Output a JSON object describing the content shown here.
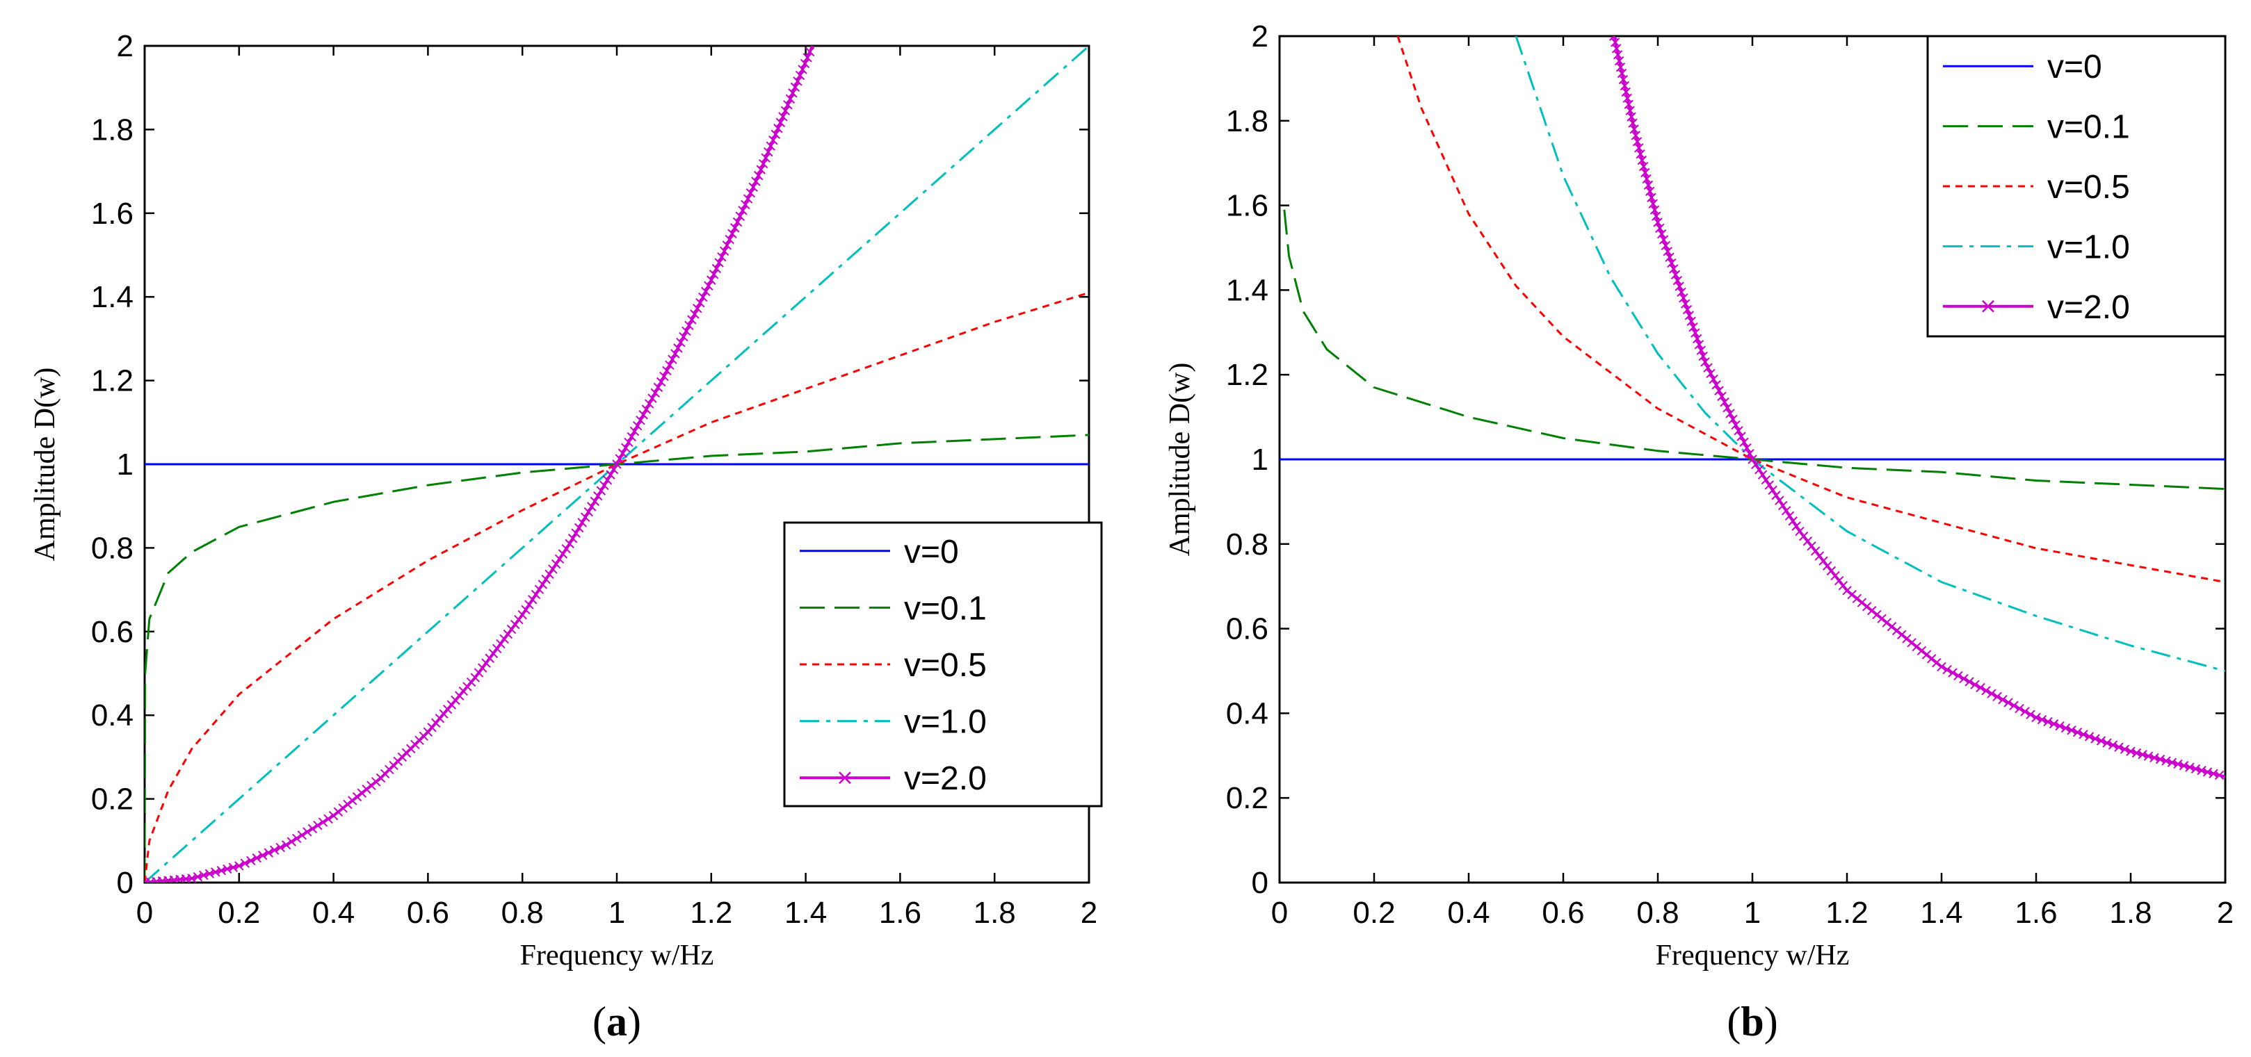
{
  "chart_data": [
    {
      "type": "line",
      "panel_label": "a",
      "xlabel": "Frequency w/Hz",
      "ylabel": "Amplitude D(w)",
      "xlim": [
        0,
        2
      ],
      "ylim": [
        0,
        2
      ],
      "xticks": [
        "0",
        "0.2",
        "0.4",
        "0.6",
        "0.8",
        "1",
        "1.2",
        "1.4",
        "1.6",
        "1.8",
        "2"
      ],
      "yticks": [
        "0",
        "0.2",
        "0.4",
        "0.6",
        "0.8",
        "1",
        "1.2",
        "1.4",
        "1.6",
        "1.8",
        "2"
      ],
      "grid": false,
      "legend_position": "lower-right",
      "series": [
        {
          "name": "v=0",
          "color": "#0000ff",
          "style": "solid",
          "x": [
            0,
            0.2,
            0.4,
            0.6,
            0.8,
            1.0,
            1.2,
            1.4,
            1.6,
            1.8,
            2.0
          ],
          "y": [
            1,
            1,
            1,
            1,
            1,
            1,
            1,
            1,
            1,
            1,
            1
          ]
        },
        {
          "name": "v=0.1",
          "color": "#008000",
          "style": "dashed",
          "x": [
            0,
            0.001,
            0.01,
            0.05,
            0.1,
            0.2,
            0.4,
            0.6,
            0.8,
            1.0,
            1.2,
            1.4,
            1.6,
            1.8,
            2.0
          ],
          "y": [
            0,
            0.5,
            0.63,
            0.74,
            0.79,
            0.85,
            0.91,
            0.95,
            0.98,
            1.0,
            1.02,
            1.03,
            1.05,
            1.06,
            1.07
          ]
        },
        {
          "name": "v=0.5",
          "color": "#ff0000",
          "style": "dotted",
          "x": [
            0,
            0.01,
            0.05,
            0.1,
            0.2,
            0.4,
            0.6,
            0.8,
            1.0,
            1.2,
            1.4,
            1.6,
            1.8,
            2.0
          ],
          "y": [
            0,
            0.1,
            0.22,
            0.32,
            0.45,
            0.63,
            0.77,
            0.89,
            1.0,
            1.1,
            1.18,
            1.26,
            1.34,
            1.41
          ]
        },
        {
          "name": "v=1.0",
          "color": "#00bfbf",
          "style": "dashdot",
          "x": [
            0,
            0.2,
            0.4,
            0.6,
            0.8,
            1.0,
            1.2,
            1.4,
            1.6,
            1.8,
            2.0
          ],
          "y": [
            0,
            0.2,
            0.4,
            0.6,
            0.8,
            1.0,
            1.2,
            1.4,
            1.6,
            1.8,
            2.0
          ]
        },
        {
          "name": "v=2.0",
          "color": "#cc00cc",
          "style": "solid-x",
          "x": [
            0,
            0.1,
            0.2,
            0.3,
            0.4,
            0.5,
            0.6,
            0.7,
            0.8,
            0.9,
            1.0,
            1.1,
            1.2,
            1.3,
            1.414
          ],
          "y": [
            0,
            0.01,
            0.04,
            0.09,
            0.16,
            0.25,
            0.36,
            0.49,
            0.64,
            0.81,
            1.0,
            1.21,
            1.44,
            1.69,
            2.0
          ]
        }
      ]
    },
    {
      "type": "line",
      "panel_label": "b",
      "xlabel": "Frequency w/Hz",
      "ylabel": "Amplitude D(w)",
      "xlim": [
        0,
        2
      ],
      "ylim": [
        0,
        2
      ],
      "xticks": [
        "0",
        "0.2",
        "0.4",
        "0.6",
        "0.8",
        "1",
        "1.2",
        "1.4",
        "1.6",
        "1.8",
        "2"
      ],
      "yticks": [
        "0",
        "0.2",
        "0.4",
        "0.6",
        "0.8",
        "1",
        "1.2",
        "1.4",
        "1.6",
        "1.8",
        "2"
      ],
      "grid": false,
      "legend_position": "upper-right",
      "series": [
        {
          "name": "v=0",
          "color": "#0000ff",
          "style": "solid",
          "x": [
            0,
            0.2,
            0.4,
            0.6,
            0.8,
            1.0,
            1.2,
            1.4,
            1.6,
            1.8,
            2.0
          ],
          "y": [
            1,
            1,
            1,
            1,
            1,
            1,
            1,
            1,
            1,
            1,
            1
          ]
        },
        {
          "name": "v=0.1",
          "color": "#008000",
          "style": "dashed",
          "x": [
            0.01,
            0.02,
            0.05,
            0.1,
            0.2,
            0.4,
            0.6,
            0.8,
            1.0,
            1.2,
            1.4,
            1.6,
            1.8,
            2.0
          ],
          "y": [
            1.59,
            1.48,
            1.35,
            1.26,
            1.17,
            1.1,
            1.05,
            1.02,
            1.0,
            0.98,
            0.97,
            0.95,
            0.94,
            0.93
          ]
        },
        {
          "name": "v=0.5",
          "color": "#ff0000",
          "style": "dotted",
          "x": [
            0.25,
            0.3,
            0.4,
            0.5,
            0.6,
            0.8,
            1.0,
            1.2,
            1.4,
            1.6,
            1.8,
            2.0
          ],
          "y": [
            2.0,
            1.83,
            1.58,
            1.41,
            1.29,
            1.12,
            1.0,
            0.91,
            0.85,
            0.79,
            0.75,
            0.71
          ]
        },
        {
          "name": "v=1.0",
          "color": "#00bfbf",
          "style": "dashdot",
          "x": [
            0.5,
            0.6,
            0.7,
            0.8,
            0.9,
            1.0,
            1.2,
            1.4,
            1.6,
            1.8,
            2.0
          ],
          "y": [
            2.0,
            1.67,
            1.43,
            1.25,
            1.11,
            1.0,
            0.83,
            0.71,
            0.63,
            0.56,
            0.5
          ]
        },
        {
          "name": "v=2.0",
          "color": "#cc00cc",
          "style": "solid-x",
          "x": [
            0.707,
            0.75,
            0.8,
            0.9,
            1.0,
            1.1,
            1.2,
            1.4,
            1.6,
            1.8,
            2.0
          ],
          "y": [
            2.0,
            1.78,
            1.56,
            1.23,
            1.0,
            0.83,
            0.69,
            0.51,
            0.39,
            0.31,
            0.25
          ]
        }
      ]
    }
  ]
}
